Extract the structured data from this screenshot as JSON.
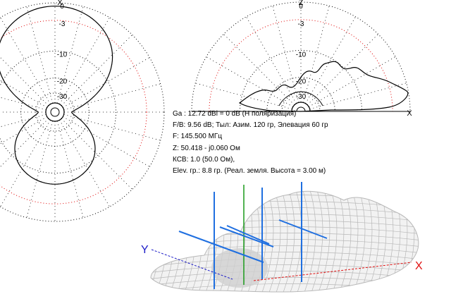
{
  "azimuth_plot": {
    "axis_label": "X",
    "ring_labels": [
      "0",
      "-3",
      "-10",
      "-20",
      "-30"
    ],
    "ring_db": [
      0,
      -3,
      -10,
      -20,
      -30
    ]
  },
  "elevation_plot": {
    "axis_label_top": "Z",
    "axis_label_right": "X",
    "ring_labels": [
      "0",
      "-3",
      "-10",
      "-20",
      "-30"
    ],
    "ring_db": [
      0,
      -3,
      -10,
      -20,
      -30
    ]
  },
  "info": {
    "gain": "Ga : 12.72 dBi = 0 dB  (Н поляризация)",
    "fb": "F/B: 9.56 dB; Тыл: Азим. 120 гр, Элевация 60 гр",
    "freq": "F: 145.500 МГц",
    "impedance": "Z: 50.418 - j0.060 Ом",
    "swr": "КСВ: 1.0 (50.0 Ом),",
    "elev": "Elev. гр.: 8.8 гр. (Реал. земля. Высота = 3.00 м)"
  },
  "view3d": {
    "label_y": "Y",
    "label_x": "X"
  },
  "colors": {
    "grid": "#000000",
    "ref_ring": "#e00000",
    "pattern": "#000000",
    "mesh": "#b8b8b8",
    "antenna": "#1f6fe0",
    "z_axis": "#1a9a1a",
    "y_axis": "#1c1cc8",
    "x_axis": "#e01010"
  }
}
